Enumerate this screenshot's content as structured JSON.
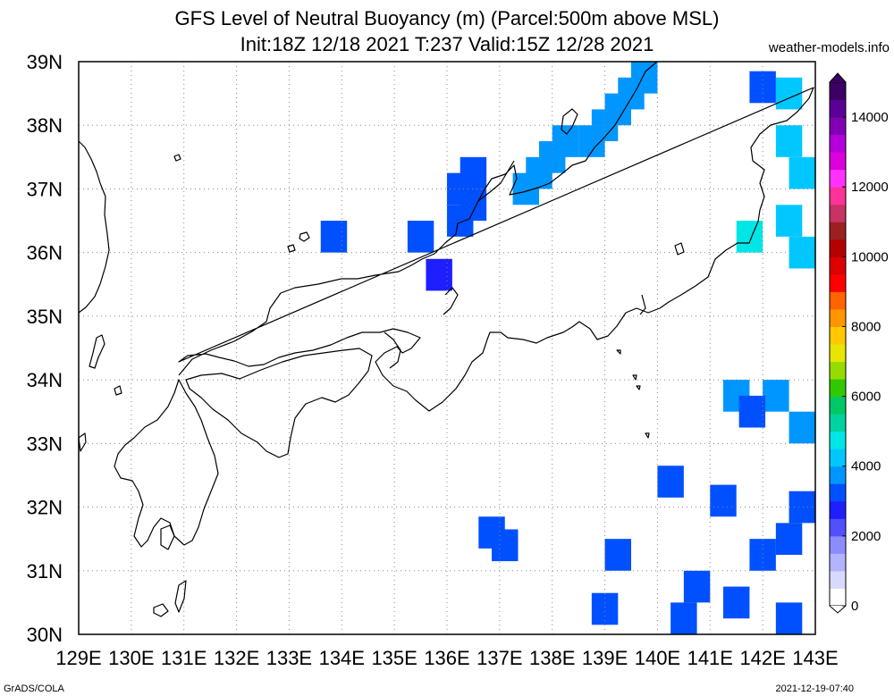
{
  "title_line1": "GFS Level of Neutral Buoyancy (m) (Parcel:500m above MSL)",
  "title_line2": "Init:18Z 12/18 2021 T:237 Valid:15Z 12/28 2021",
  "site": "weather-models.info",
  "footer_left": "GrADS/COLA",
  "footer_right": "2021-12-19-07:40",
  "map": {
    "lon_range": [
      129,
      143
    ],
    "lat_range": [
      30,
      39
    ],
    "lon_labels": [
      "129E",
      "130E",
      "131E",
      "132E",
      "133E",
      "134E",
      "135E",
      "136E",
      "137E",
      "138E",
      "139E",
      "140E",
      "141E",
      "142E",
      "143E"
    ],
    "lat_labels": [
      "30N",
      "31N",
      "32N",
      "33N",
      "34N",
      "35N",
      "36N",
      "37N",
      "38N",
      "39N"
    ],
    "grid": "dotted"
  },
  "colorbar": {
    "labels": [
      "0",
      "2000",
      "4000",
      "6000",
      "8000",
      "10000",
      "12000",
      "14000"
    ],
    "colors": [
      "#ffffff",
      "#d9d9ff",
      "#b3b3ff",
      "#8c8cff",
      "#5050ff",
      "#1e1eff",
      "#0050ff",
      "#0096ff",
      "#00c8ff",
      "#00e6e6",
      "#00d2a0",
      "#00c864",
      "#32c800",
      "#96dc00",
      "#e6e600",
      "#ffc800",
      "#ff9600",
      "#ff6400",
      "#ff0000",
      "#dc0000",
      "#b40000",
      "#9b2020",
      "#c83264",
      "#ff3296",
      "#ff32ff",
      "#dc00dc",
      "#b400dc",
      "#8200b4",
      "#5a0096",
      "#3c0064"
    ]
  },
  "cell_colors": {
    "a": "#0050ff",
    "b": "#0096ff",
    "c": "#00c8ff",
    "d": "#00e6e6",
    "e": "#1e1eff"
  },
  "cells": [
    {
      "lon": 139.75,
      "lat": 38.75,
      "lvl": "b"
    },
    {
      "lon": 139.5,
      "lat": 38.5,
      "lvl": "b"
    },
    {
      "lon": 139.25,
      "lat": 38.25,
      "lvl": "b"
    },
    {
      "lon": 139.0,
      "lat": 38.0,
      "lvl": "b"
    },
    {
      "lon": 138.75,
      "lat": 37.75,
      "lvl": "b"
    },
    {
      "lon": 138.25,
      "lat": 37.75,
      "lvl": "b"
    },
    {
      "lon": 138.0,
      "lat": 37.5,
      "lvl": "b"
    },
    {
      "lon": 137.75,
      "lat": 37.25,
      "lvl": "b"
    },
    {
      "lon": 137.5,
      "lat": 37.0,
      "lvl": "b"
    },
    {
      "lon": 136.5,
      "lat": 37.25,
      "lvl": "a"
    },
    {
      "lon": 136.25,
      "lat": 37.0,
      "lvl": "a"
    },
    {
      "lon": 136.5,
      "lat": 36.75,
      "lvl": "a"
    },
    {
      "lon": 136.25,
      "lat": 36.5,
      "lvl": "a"
    },
    {
      "lon": 135.5,
      "lat": 36.25,
      "lvl": "a"
    },
    {
      "lon": 133.85,
      "lat": 36.25,
      "lvl": "a"
    },
    {
      "lon": 135.85,
      "lat": 35.65,
      "lvl": "e"
    },
    {
      "lon": 142.5,
      "lat": 38.5,
      "lvl": "c"
    },
    {
      "lon": 142.5,
      "lat": 37.75,
      "lvl": "c"
    },
    {
      "lon": 142.75,
      "lat": 37.25,
      "lvl": "c"
    },
    {
      "lon": 142.5,
      "lat": 36.5,
      "lvl": "c"
    },
    {
      "lon": 142.75,
      "lat": 36.0,
      "lvl": "c"
    },
    {
      "lon": 141.75,
      "lat": 36.25,
      "lvl": "d"
    },
    {
      "lon": 142.0,
      "lat": 38.6,
      "lvl": "a"
    },
    {
      "lon": 141.5,
      "lat": 33.75,
      "lvl": "b"
    },
    {
      "lon": 142.25,
      "lat": 33.75,
      "lvl": "b"
    },
    {
      "lon": 142.75,
      "lat": 33.25,
      "lvl": "b"
    },
    {
      "lon": 141.8,
      "lat": 33.5,
      "lvl": "a"
    },
    {
      "lon": 140.25,
      "lat": 32.4,
      "lvl": "a"
    },
    {
      "lon": 141.25,
      "lat": 32.1,
      "lvl": "a"
    },
    {
      "lon": 142.75,
      "lat": 32.0,
      "lvl": "a"
    },
    {
      "lon": 142.5,
      "lat": 31.5,
      "lvl": "a"
    },
    {
      "lon": 142.0,
      "lat": 31.25,
      "lvl": "a"
    },
    {
      "lon": 140.75,
      "lat": 30.75,
      "lvl": "a"
    },
    {
      "lon": 141.5,
      "lat": 30.5,
      "lvl": "a"
    },
    {
      "lon": 140.5,
      "lat": 30.25,
      "lvl": "a"
    },
    {
      "lon": 142.5,
      "lat": 30.25,
      "lvl": "a"
    },
    {
      "lon": 139.25,
      "lat": 31.25,
      "lvl": "a"
    },
    {
      "lon": 139.0,
      "lat": 30.4,
      "lvl": "a"
    },
    {
      "lon": 136.85,
      "lat": 31.6,
      "lvl": "a"
    },
    {
      "lon": 137.1,
      "lat": 31.4,
      "lvl": "a"
    }
  ]
}
